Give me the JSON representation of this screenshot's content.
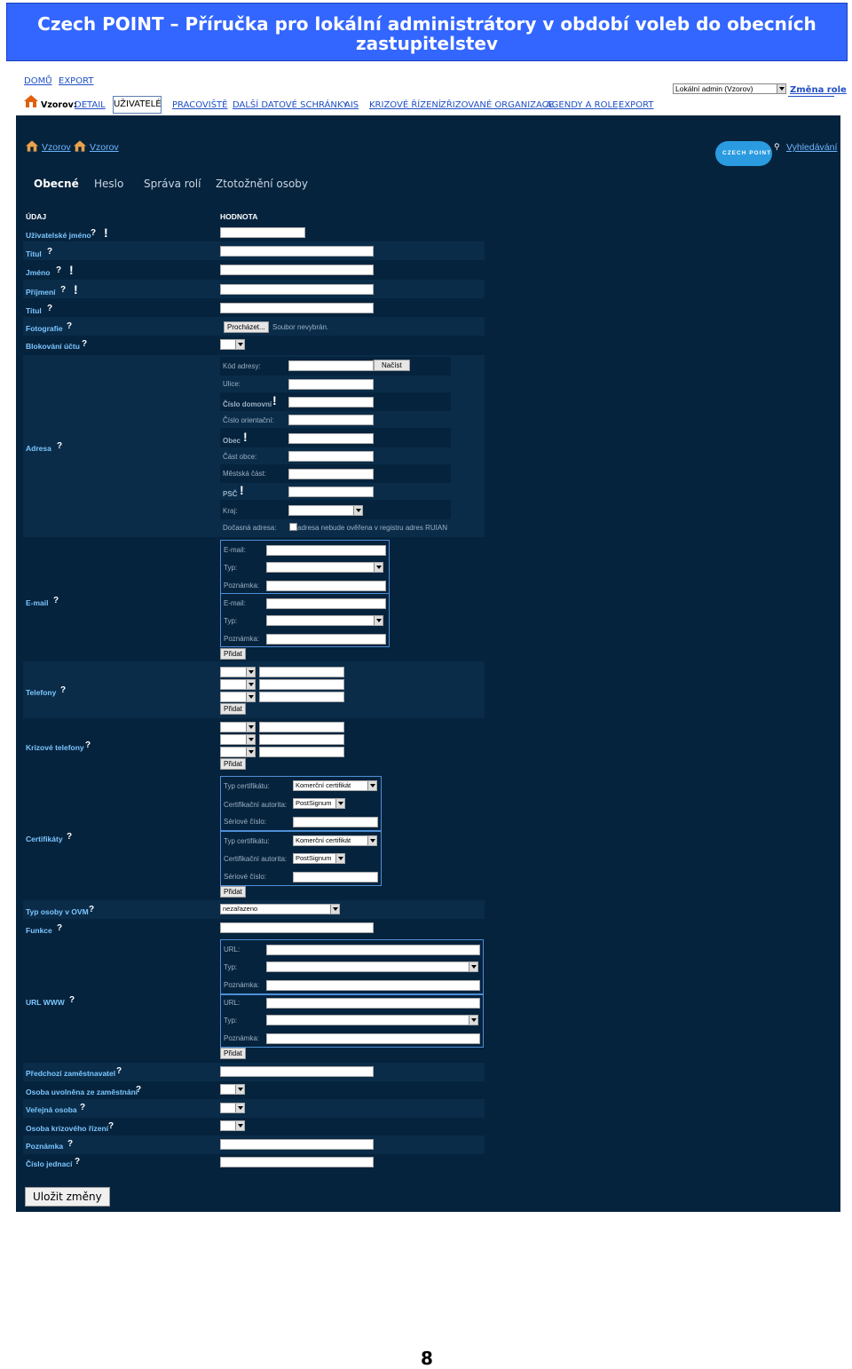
{
  "doc": {
    "title_line1": "Czech POINT – Příručka pro lokální administrátory v období voleb do obecních",
    "title_line2": "zastupitelstev",
    "page_number": "8"
  },
  "topnav": {
    "home": "DOMŮ",
    "export": "EXPORT",
    "prefix": "Vzorov:",
    "items": [
      "DETAIL",
      "UŽIVATELÉ",
      "PRACOVIŠTĚ",
      "DALŠÍ DATOVÉ SCHRÁNKY",
      "AIS",
      "KRIZOVÉ ŘÍZENÍ",
      "ZŘIZOVANÉ ORGANIZACE",
      "AGENDY A ROLE",
      "EXPORT"
    ],
    "role_select": "Lokální admin (Vzorov)",
    "change_role": "Změna role"
  },
  "header": {
    "breadcrumb1": "Vzorov",
    "breadcrumb2": "Vzorov",
    "logo_text": "CZECH POINT",
    "search": "Vyhledávání"
  },
  "tabs": [
    "Obecné",
    "Heslo",
    "Správa rolí",
    "Ztotožnění osoby"
  ],
  "table": {
    "col1": "ÚDAJ",
    "col2": "HODNOTA"
  },
  "fields": {
    "username": "Uživatelské jméno",
    "title_before": "Titul",
    "first_name": "Jméno",
    "last_name": "Příjmení",
    "title_after": "Titul",
    "photo": "Fotografie",
    "block": "Blokování účtu",
    "address": "Adresa",
    "email": "E-mail",
    "phones": "Telefony",
    "crisis_phones": "Krizové telefony",
    "certs": "Certifikáty",
    "person_type": "Typ osoby v OVM",
    "function": "Funkce",
    "url": "URL WWW",
    "prev_employer": "Předchozí zaměstnavatel",
    "released": "Osoba uvolněna ze zaměstnání",
    "public": "Veřejná osoba",
    "crisis_person": "Osoba krizového řízení",
    "note": "Poznámka",
    "ref_number": "Číslo jednací"
  },
  "photo": {
    "browse": "Procházet...",
    "status": "Soubor nevybrán."
  },
  "address": {
    "code": "Kód adresy:",
    "load": "Načíst",
    "street": "Ulice:",
    "house_no": "Číslo domovní",
    "orient_no": "Číslo orientační:",
    "city": "Obec",
    "city_part": "Část obce:",
    "district": "Městská část:",
    "zip": "PSČ",
    "region": "Kraj:",
    "temp": "Dočasná adresa:",
    "temp_note": "adresa nebude ověřena v registru adres RUIAN"
  },
  "email": {
    "email": "E-mail:",
    "type": "Typ:",
    "note": "Poznámka:",
    "add": "Přidat"
  },
  "add": "Přidat",
  "cert": {
    "type": "Typ certifikátu:",
    "type_value": "Komerční certifikát",
    "authority": "Certifikační autorita:",
    "authority_value": "PostSignum",
    "serial": "Sériové číslo:"
  },
  "person_type_value": "nezařazeno",
  "url": {
    "url": "URL:",
    "type": "Typ:",
    "note": "Poznámka:"
  },
  "save": "Uložit změny"
}
